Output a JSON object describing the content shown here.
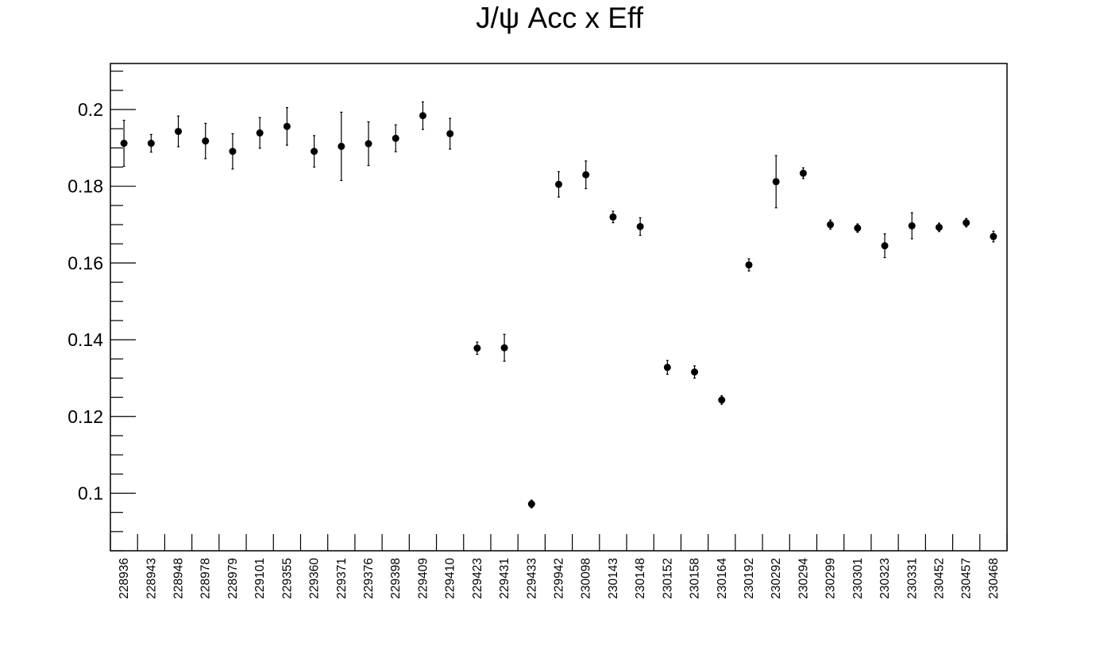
{
  "chart_data": {
    "type": "scatter",
    "title": "J/ψ Acc x Eff",
    "xlabel": "",
    "ylabel": "",
    "categories": [
      "228936",
      "228943",
      "228948",
      "228978",
      "228979",
      "229101",
      "229355",
      "229360",
      "229371",
      "229376",
      "229398",
      "229409",
      "229410",
      "229423",
      "229431",
      "229433",
      "229942",
      "230098",
      "230143",
      "230148",
      "230152",
      "230158",
      "230164",
      "230192",
      "230292",
      "230294",
      "230299",
      "230301",
      "230323",
      "230331",
      "230452",
      "230457",
      "230468"
    ],
    "values": [
      0.1912,
      0.1912,
      0.1943,
      0.1918,
      0.1891,
      0.1939,
      0.1956,
      0.1891,
      0.1904,
      0.1911,
      0.1925,
      0.1984,
      0.1937,
      0.1378,
      0.1379,
      0.0972,
      0.1805,
      0.183,
      0.172,
      0.1695,
      0.1328,
      0.1316,
      0.1243,
      0.1595,
      0.1812,
      0.1834,
      0.17,
      0.1691,
      0.1645,
      0.1697,
      0.1693,
      0.1705,
      0.1669
    ],
    "errors": [
      0.006,
      0.0023,
      0.004,
      0.0046,
      0.0046,
      0.004,
      0.0049,
      0.0041,
      0.0089,
      0.0057,
      0.0035,
      0.0036,
      0.004,
      0.0016,
      0.0035,
      0.001,
      0.0033,
      0.0036,
      0.0015,
      0.0023,
      0.0018,
      0.0016,
      0.0011,
      0.0016,
      0.0068,
      0.0014,
      0.0012,
      0.0011,
      0.0031,
      0.0034,
      0.0011,
      0.0011,
      0.0014
    ],
    "ylim": [
      0.085,
      0.212
    ],
    "y_ticks": [
      "0.1",
      "0.12",
      "0.14",
      "0.16",
      "0.18",
      "0.2"
    ],
    "grid": false,
    "marker_color": "#000000"
  }
}
